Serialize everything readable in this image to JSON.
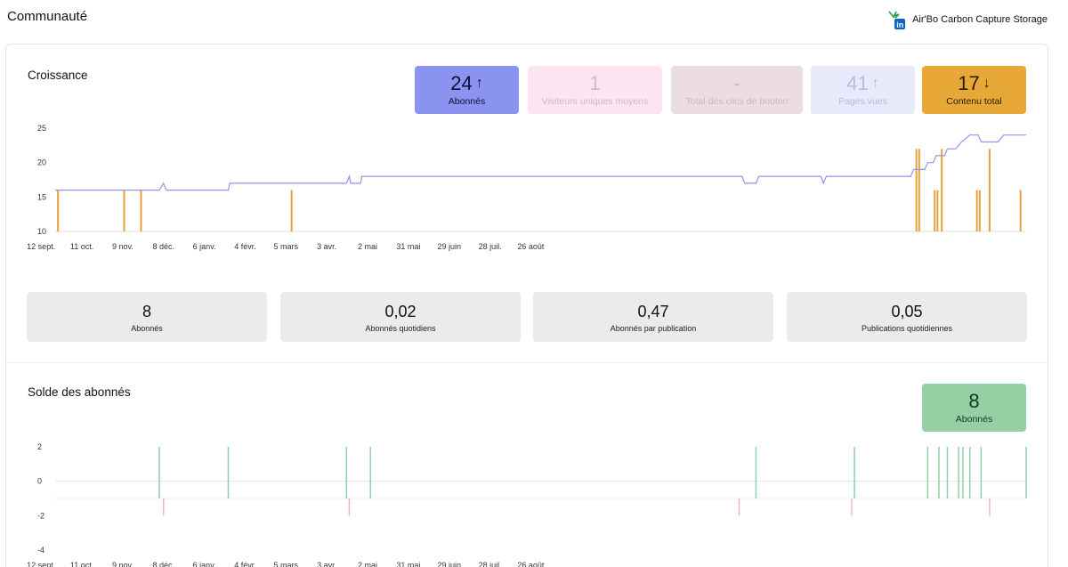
{
  "header": {
    "title": "Communauté",
    "brand_name": "Air'Bo Carbon Capture Storage",
    "brand_icon": "linkedin-icon"
  },
  "growth": {
    "title": "Croissance",
    "kpis": [
      {
        "value": "24",
        "label": "Abonnés",
        "trend": "up",
        "bg": "#8b93f0",
        "fg": "#0b1035"
      },
      {
        "value": "1",
        "label": "Visiteurs uniques moyens",
        "trend": "none",
        "bg": "#fce4f3",
        "fg": "#d7b5c8"
      },
      {
        "value": "-",
        "label": "Total des clics de bouton",
        "trend": "none",
        "bg": "#ecdde2",
        "fg": "#cbb7bd"
      },
      {
        "value": "41",
        "label": "Pages vues",
        "trend": "up",
        "bg": "#e8eafb",
        "fg": "#b7bcd7"
      },
      {
        "value": "17",
        "label": "Contenu total",
        "trend": "down",
        "bg": "#e8a837",
        "fg": "#2a1c02"
      }
    ],
    "metrics": [
      {
        "value": "8",
        "label": "Abonnés"
      },
      {
        "value": "0,02",
        "label": "Abonnés quotidiens"
      },
      {
        "value": "0,47",
        "label": "Abonnés par publication"
      },
      {
        "value": "0,05",
        "label": "Publications quotidiennes"
      }
    ]
  },
  "balance": {
    "title": "Solde des abonnés",
    "kpi": {
      "value": "8",
      "label": "Abonnés",
      "bg": "#95cfa3",
      "fg": "#103a1c"
    }
  },
  "chart_data": [
    {
      "type": "line",
      "ylim": [
        10,
        25
      ],
      "yticks": [
        "25",
        "20",
        "15",
        "10"
      ],
      "xticks": [
        "12 sept.",
        "11 oct.",
        "9 nov.",
        "8 déc.",
        "6 janv.",
        "4 févr.",
        "5 mars",
        "3 avr.",
        "2 mai",
        "31 mai",
        "29 juin",
        "28 juil.",
        "26 août"
      ],
      "colors": {
        "followers": "#8e96e8",
        "content": "#e6a23c"
      },
      "series": [
        {
          "values": [
            [
              0,
              16
            ],
            [
              74,
              16
            ],
            [
              77,
              17
            ],
            [
              79,
              16
            ],
            [
              122,
              16
            ],
            [
              123,
              16
            ],
            [
              124,
              17
            ],
            [
              207,
              17
            ],
            [
              209,
              18
            ],
            [
              210,
              17
            ],
            [
              217,
              17
            ],
            [
              218,
              18
            ],
            [
              488,
              18
            ],
            [
              490,
              17
            ],
            [
              498,
              17
            ],
            [
              500,
              18
            ],
            [
              544,
              18
            ],
            [
              546,
              17
            ],
            [
              548,
              18
            ],
            [
              608,
              18
            ],
            [
              610,
              19
            ],
            [
              618,
              19
            ],
            [
              620,
              20
            ],
            [
              624,
              20
            ],
            [
              626,
              21
            ],
            [
              632,
              21
            ],
            [
              634,
              22
            ],
            [
              640,
              22
            ],
            [
              644,
              23
            ],
            [
              650,
              24
            ],
            [
              656,
              24
            ],
            [
              658,
              23
            ],
            [
              670,
              23
            ],
            [
              674,
              24
            ],
            [
              690,
              24
            ]
          ]
        },
        {
          "values": [
            [
              2,
              16
            ],
            [
              49,
              16
            ],
            [
              61,
              16
            ],
            [
              168,
              16
            ],
            [
              612,
              22
            ],
            [
              614,
              22
            ],
            [
              625,
              16
            ],
            [
              627,
              16
            ],
            [
              630,
              22
            ],
            [
              655,
              16
            ],
            [
              657,
              16
            ],
            [
              664,
              22
            ],
            [
              686,
              16
            ]
          ]
        }
      ]
    },
    {
      "type": "bar",
      "ylim": [
        -4,
        2
      ],
      "yticks": [
        "2",
        "0",
        "-2",
        "-4"
      ],
      "xticks": [
        "12 sept.",
        "11 oct.",
        "9 nov.",
        "8 déc.",
        "6 janv.",
        "4 févr.",
        "5 mars",
        "3 avr.",
        "2 mai",
        "31 mai",
        "29 juin",
        "28 juil.",
        "26 août"
      ],
      "colors": {
        "positive": "#8fd1a8",
        "negative": "#f4b3c2"
      },
      "series": [
        {
          "values": [
            [
              74,
              2
            ],
            [
              77,
              -2
            ],
            [
              123,
              2
            ],
            [
              207,
              2
            ],
            [
              209,
              -2
            ],
            [
              224,
              2
            ],
            [
              486,
              -2
            ],
            [
              498,
              2
            ],
            [
              566,
              -2
            ],
            [
              568,
              2
            ],
            [
              620,
              2
            ],
            [
              628,
              2
            ],
            [
              634,
              2
            ],
            [
              642,
              2
            ],
            [
              645,
              2
            ],
            [
              650,
              2
            ],
            [
              658,
              2
            ],
            [
              664,
              -2
            ],
            [
              690,
              2
            ]
          ]
        }
      ]
    }
  ]
}
